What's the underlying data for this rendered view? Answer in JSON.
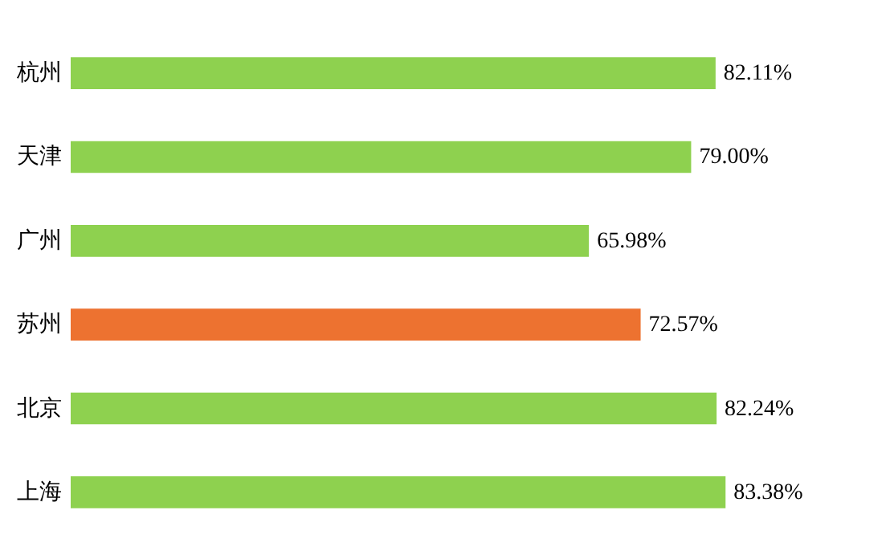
{
  "chart_data": {
    "type": "bar",
    "orientation": "horizontal",
    "categories": [
      "杭州",
      "天津",
      "广州",
      "苏州",
      "北京",
      "上海"
    ],
    "values": [
      82.11,
      79.0,
      65.98,
      72.57,
      82.24,
      83.38
    ],
    "colors": [
      "#8ed14f",
      "#8ed14f",
      "#8ed14f",
      "#ed7230",
      "#8ed14f",
      "#8ed14f"
    ],
    "value_labels": [
      "82.11%",
      "79.00%",
      "65.98%",
      "72.57%",
      "82.24%",
      "83.38%"
    ]
  }
}
